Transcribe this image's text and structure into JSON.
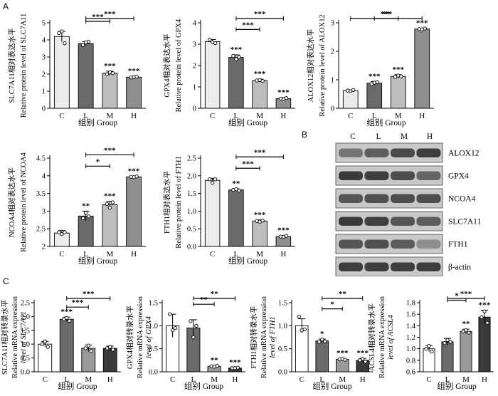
{
  "labels": {
    "A": "A",
    "B": "B",
    "C": "C"
  },
  "chart_data": [
    {
      "type": "bar",
      "panel": "A",
      "ylabel_cn": "SLC7A11相对表达水平",
      "ylabel_en": "Relative protein level of SLC7A11",
      "xlabel": "组别 Group",
      "categories": [
        "C",
        "L",
        "M",
        "H"
      ],
      "values": [
        4.2,
        3.78,
        2.05,
        1.82
      ],
      "errors": [
        0.3,
        0.12,
        0.12,
        0.05
      ],
      "points": [
        [
          4.4,
          4.5,
          3.8
        ],
        [
          3.7,
          3.85,
          3.9
        ],
        [
          2.0,
          2.1,
          2.05
        ],
        [
          1.8,
          1.82,
          1.85
        ]
      ],
      "fills": [
        "#ececec",
        "#6a6a6a",
        "#bdbdbd",
        "#8f8f8f"
      ],
      "ylim": [
        0,
        5
      ],
      "yticks": [
        0,
        1,
        2,
        3,
        4,
        5
      ],
      "stars": [
        "",
        "",
        "***",
        "***"
      ],
      "brackets": [
        {
          "from": 1,
          "to": 2,
          "label": "***"
        },
        {
          "from": 1,
          "to": 3,
          "label": "***"
        }
      ]
    },
    {
      "type": "bar",
      "panel": "A",
      "ylabel_cn": "GPX4相对表达水平",
      "ylabel_en": "Relative protein level of GPX4",
      "xlabel": "组别 Group",
      "categories": [
        "C",
        "L",
        "M",
        "H"
      ],
      "values": [
        3.12,
        2.38,
        1.3,
        0.45
      ],
      "errors": [
        0.1,
        0.12,
        0.06,
        0.05
      ],
      "points": [
        [
          3.2,
          3.1,
          3.05
        ],
        [
          2.45,
          2.3,
          2.4
        ],
        [
          1.3,
          1.32,
          1.28
        ],
        [
          0.45,
          0.42,
          0.48
        ]
      ],
      "fills": [
        "#ececec",
        "#6a6a6a",
        "#bdbdbd",
        "#8f8f8f"
      ],
      "ylim": [
        0,
        4
      ],
      "yticks": [
        0,
        1,
        2,
        3,
        4
      ],
      "stars": [
        "",
        "***",
        "***",
        "***"
      ],
      "brackets": [
        {
          "from": 1,
          "to": 2,
          "label": "***"
        },
        {
          "from": 1,
          "to": 3,
          "label": "***"
        }
      ]
    },
    {
      "type": "bar",
      "panel": "A",
      "ylabel_cn": "ALOX12相对表达水平",
      "ylabel_en": "Relative protein level of ALOX12",
      "xlabel": "组别 Group",
      "categories": [
        "C",
        "L",
        "M",
        "H"
      ],
      "values": [
        0.62,
        0.88,
        1.12,
        2.78
      ],
      "errors": [
        0.03,
        0.06,
        0.06,
        0.03
      ],
      "points": [
        [
          0.62,
          0.6,
          0.64
        ],
        [
          0.85,
          0.9,
          0.92
        ],
        [
          1.1,
          1.15,
          1.12
        ],
        [
          2.78,
          2.77,
          2.8
        ]
      ],
      "fills": [
        "#ececec",
        "#6a6a6a",
        "#bdbdbd",
        "#8f8f8f"
      ],
      "ylim": [
        0,
        3
      ],
      "yticks": [
        0,
        1,
        2,
        3
      ],
      "stars": [
        "",
        "***",
        "***",
        "***"
      ],
      "brackets": [
        {
          "from": 1,
          "to": 2,
          "label": "**"
        },
        {
          "from": 0,
          "to": 3,
          "label": "***"
        }
      ]
    },
    {
      "type": "bar",
      "panel": "A",
      "ylabel_cn": "NCOA4相对表达水平",
      "ylabel_en": "Relative protein level of NCOA4",
      "xlabel": "组别 Group",
      "categories": [
        "C",
        "L",
        "M",
        "H"
      ],
      "values": [
        2.38,
        2.86,
        3.18,
        3.97
      ],
      "errors": [
        0.07,
        0.14,
        0.1,
        0.02
      ],
      "points": [
        [
          2.4,
          2.35,
          2.4
        ],
        [
          2.8,
          2.95,
          2.85
        ],
        [
          3.2,
          3.1,
          3.25
        ],
        [
          3.97,
          3.96,
          3.98
        ]
      ],
      "fills": [
        "#ececec",
        "#6a6a6a",
        "#bdbdbd",
        "#8f8f8f"
      ],
      "ylim": [
        2.0,
        4.5
      ],
      "yticks": [
        2.0,
        2.5,
        3.0,
        3.5,
        4.0,
        4.5
      ],
      "stars": [
        "",
        "**",
        "***",
        "***"
      ],
      "brackets": [
        {
          "from": 1,
          "to": 2,
          "label": "*"
        },
        {
          "from": 1,
          "to": 3,
          "label": "***"
        }
      ]
    },
    {
      "type": "bar",
      "panel": "A",
      "ylabel_cn": "FTH1相对表达水平",
      "ylabel_en": "Relative protein level of FTH1",
      "xlabel": "组别 Group",
      "categories": [
        "C",
        "L",
        "M",
        "H"
      ],
      "values": [
        1.87,
        1.6,
        0.72,
        0.28
      ],
      "errors": [
        0.06,
        0.03,
        0.03,
        0.03
      ],
      "points": [
        [
          1.9,
          1.8,
          1.9
        ],
        [
          1.6,
          1.62,
          1.58
        ],
        [
          0.72,
          0.7,
          0.73
        ],
        [
          0.28,
          0.27,
          0.3
        ]
      ],
      "fills": [
        "#ececec",
        "#6a6a6a",
        "#bdbdbd",
        "#8f8f8f"
      ],
      "ylim": [
        0,
        2.5
      ],
      "yticks": [
        0.0,
        0.5,
        1.0,
        1.5,
        2.0,
        2.5
      ],
      "stars": [
        "",
        "**",
        "***",
        "***"
      ],
      "brackets": [
        {
          "from": 1,
          "to": 2,
          "label": "***"
        },
        {
          "from": 1,
          "to": 3,
          "label": "***"
        }
      ]
    },
    {
      "type": "bar",
      "panel": "C",
      "ylabel_cn": "SLC7A11相对转录水平",
      "ylabel_en": "Relative mRNA expression",
      "ylabel_en2": "level of SLC7A11",
      "xlabel": "组别 Group",
      "categories": [
        "C",
        "L",
        "M",
        "H"
      ],
      "values": [
        1.0,
        1.9,
        0.85,
        0.85
      ],
      "errors": [
        0.1,
        0.08,
        0.12,
        0.08
      ],
      "points": [
        [
          1.0,
          1.1,
          0.9
        ],
        [
          1.9,
          1.95,
          1.85
        ],
        [
          0.85,
          0.95,
          0.75
        ],
        [
          0.85,
          0.9,
          0.8
        ]
      ],
      "fills": [
        "#ffffff",
        "#6a6a6a",
        "#9a9a9a",
        "#3a3a3a"
      ],
      "ylim": [
        0,
        2.5
      ],
      "yticks": [
        0.0,
        0.5,
        1.0,
        1.5,
        2.0,
        2.5
      ],
      "stars": [
        "",
        "***",
        "",
        ""
      ],
      "brackets": [
        {
          "from": 1,
          "to": 2,
          "label": "***"
        },
        {
          "from": 1,
          "to": 3,
          "label": "***"
        }
      ]
    },
    {
      "type": "bar",
      "panel": "C",
      "ylabel_cn": "GPX4相对转录水平",
      "ylabel_en": "Relative mRNA expression",
      "ylabel_en2": "level of GPX4",
      "xlabel": "组别 Group",
      "categories": [
        "C",
        "L",
        "M",
        "H"
      ],
      "values": [
        1.0,
        0.95,
        0.12,
        0.08
      ],
      "errors": [
        0.25,
        0.18,
        0.02,
        0.01
      ],
      "points": [
        [
          1.25,
          0.9,
          0.95
        ],
        [
          1.1,
          0.75,
          1.0
        ],
        [
          0.12,
          0.11,
          0.13
        ],
        [
          0.08,
          0.08,
          0.09
        ]
      ],
      "fills": [
        "#ffffff",
        "#6a6a6a",
        "#9a9a9a",
        "#3a3a3a"
      ],
      "ylim": [
        0,
        1.5
      ],
      "yticks": [
        0.0,
        0.5,
        1.0,
        1.5
      ],
      "stars": [
        "",
        "",
        "**",
        "***"
      ],
      "brackets": [
        {
          "from": 1,
          "to": 2,
          "label": "**"
        },
        {
          "from": 1,
          "to": 3,
          "label": "**"
        }
      ]
    },
    {
      "type": "bar",
      "panel": "C",
      "ylabel_cn": "FTH1相对转录水平",
      "ylabel_en": "Relative mRNA expression",
      "ylabel_en2": "level of FTH1",
      "xlabel": "组别 Group",
      "categories": [
        "C",
        "L",
        "M",
        "H"
      ],
      "values": [
        1.0,
        0.67,
        0.27,
        0.25
      ],
      "errors": [
        0.15,
        0.04,
        0.02,
        0.04
      ],
      "points": [
        [
          1.2,
          0.9,
          0.92
        ],
        [
          0.65,
          0.7,
          0.66
        ],
        [
          0.27,
          0.28,
          0.26
        ],
        [
          0.25,
          0.28,
          0.22
        ]
      ],
      "fills": [
        "#ffffff",
        "#6a6a6a",
        "#9a9a9a",
        "#3a3a3a"
      ],
      "ylim": [
        0,
        1.5
      ],
      "yticks": [
        0.0,
        0.5,
        1.0,
        1.5
      ],
      "stars": [
        "",
        "*",
        "***",
        "***"
      ],
      "brackets": [
        {
          "from": 1,
          "to": 2,
          "label": "*"
        },
        {
          "from": 1,
          "to": 3,
          "label": "**"
        }
      ]
    },
    {
      "type": "bar",
      "panel": "C",
      "ylabel_cn": "ACSL4相对转录水平",
      "ylabel_en": "Relative mRNA expression",
      "ylabel_en2": "level of ACSL4",
      "xlabel": "组别 Group",
      "categories": [
        "C",
        "L",
        "M",
        "H"
      ],
      "values": [
        1.0,
        1.12,
        1.3,
        1.55
      ],
      "errors": [
        0.05,
        0.06,
        0.04,
        0.12
      ],
      "points": [
        [
          1.0,
          1.05,
          0.95
        ],
        [
          1.1,
          1.15,
          1.12
        ],
        [
          1.3,
          1.32,
          1.28
        ],
        [
          1.55,
          1.65,
          1.45
        ]
      ],
      "fills": [
        "#ffffff",
        "#6a6a6a",
        "#9a9a9a",
        "#3a3a3a"
      ],
      "ylim": [
        0.6,
        1.8
      ],
      "yticks": [
        0.6,
        0.8,
        1.0,
        1.2,
        1.4,
        1.6,
        1.8
      ],
      "stars": [
        "",
        "",
        "**",
        "***"
      ],
      "brackets": [
        {
          "from": 1,
          "to": 2,
          "label": "*"
        },
        {
          "from": 1,
          "to": 3,
          "label": "***"
        }
      ]
    }
  ],
  "blot": {
    "columns": [
      "C",
      "L",
      "M",
      "H"
    ],
    "rows": [
      {
        "name": "ALOX12",
        "lanes": [
          0.55,
          0.7,
          0.82,
          0.9
        ]
      },
      {
        "name": "GPX4",
        "lanes": [
          0.92,
          0.9,
          0.8,
          0.65
        ]
      },
      {
        "name": "NCOA4",
        "lanes": [
          0.75,
          0.78,
          0.8,
          0.8
        ]
      },
      {
        "name": "SLC7A11",
        "lanes": [
          0.92,
          0.88,
          0.75,
          0.7
        ]
      },
      {
        "name": "FTH1",
        "lanes": [
          0.75,
          0.78,
          0.7,
          0.4
        ]
      },
      {
        "name": "β-actin",
        "lanes": [
          0.9,
          0.9,
          0.9,
          0.9
        ]
      }
    ]
  }
}
